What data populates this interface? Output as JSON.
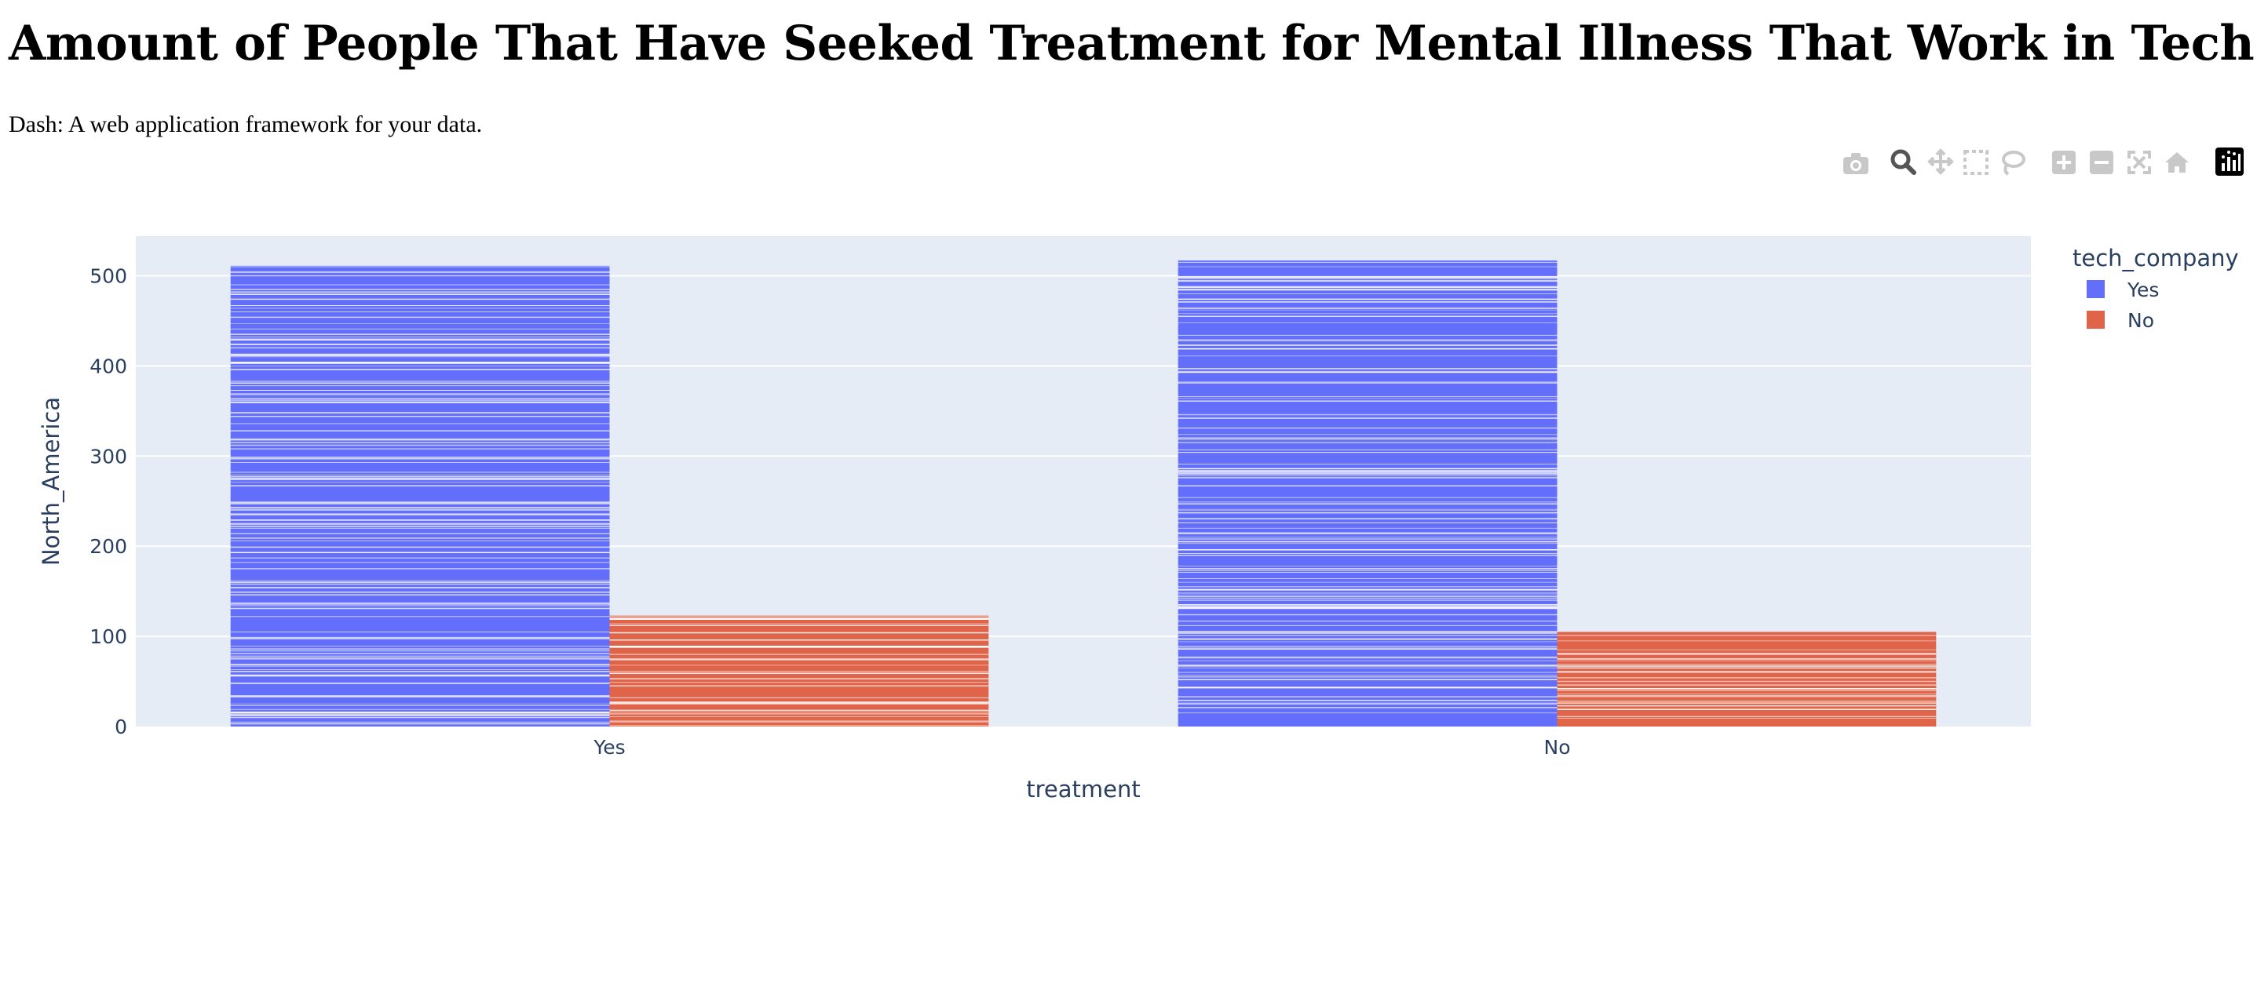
{
  "page": {
    "title": "Amount of People That Have Seeked Treatment for Mental Illness That Work in Tech",
    "subtitle": "Dash: A web application framework for your data."
  },
  "modebar": {
    "buttons": [
      {
        "name": "camera-icon",
        "tooltip": "Download plot as a png"
      },
      {
        "name": "zoom-icon",
        "tooltip": "Zoom",
        "active": true
      },
      {
        "name": "pan-icon",
        "tooltip": "Pan"
      },
      {
        "name": "box-select-icon",
        "tooltip": "Box Select"
      },
      {
        "name": "lasso-select-icon",
        "tooltip": "Lasso Select"
      },
      {
        "name": "zoom-in-icon",
        "tooltip": "Zoom in"
      },
      {
        "name": "zoom-out-icon",
        "tooltip": "Zoom out"
      },
      {
        "name": "autoscale-icon",
        "tooltip": "Autoscale"
      },
      {
        "name": "reset-axes-icon",
        "tooltip": "Reset axes"
      },
      {
        "name": "plotly-logo-icon",
        "tooltip": "Produced with Plotly"
      }
    ]
  },
  "chart_data": {
    "type": "bar",
    "barmode": "group",
    "categories": [
      "Yes",
      "No"
    ],
    "xlabel": "treatment",
    "ylabel": "North_America",
    "ylim": [
      0,
      545
    ],
    "yticks": [
      0,
      100,
      200,
      300,
      400,
      500
    ],
    "grid": true,
    "legend": {
      "title": "tech_company",
      "placement": "top-right"
    },
    "series": [
      {
        "name": "Yes",
        "color": "#636efa",
        "values": [
          511,
          517
        ]
      },
      {
        "name": "No",
        "color": "#e0644a",
        "values": [
          123,
          105
        ]
      }
    ]
  }
}
